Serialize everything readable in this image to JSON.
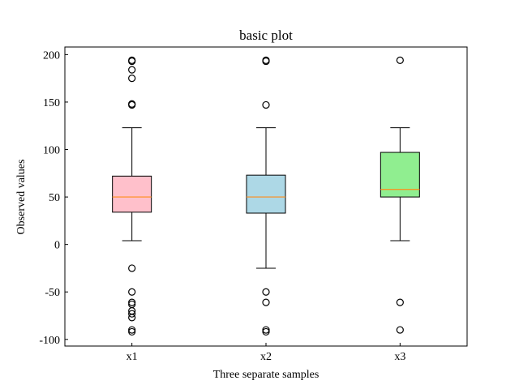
{
  "chart_data": {
    "type": "boxplot",
    "title": "basic plot",
    "xlabel": "Three separate samples",
    "ylabel": "Observed values",
    "ylim": [
      -107,
      208
    ],
    "yticks": [
      -100,
      -50,
      0,
      50,
      100,
      150,
      200
    ],
    "categories": [
      "x1",
      "x2",
      "x3"
    ],
    "series": [
      {
        "label": "x1",
        "color": "#ffc0cb",
        "whisker_low": 4,
        "q1": 34,
        "median": 50,
        "q3": 72,
        "whisker_high": 123,
        "outliers": [
          193,
          194,
          184,
          175,
          148,
          147,
          -25,
          -50,
          -61,
          -63,
          -70,
          -73,
          -77,
          -90,
          -92
        ]
      },
      {
        "label": "x2",
        "color": "#add8e6",
        "whisker_low": -25,
        "q1": 33,
        "median": 50,
        "q3": 73,
        "whisker_high": 123,
        "outliers": [
          193,
          194,
          147,
          -50,
          -61,
          -90,
          -92
        ]
      },
      {
        "label": "x3",
        "color": "#90ee90",
        "whisker_low": 4,
        "q1": 50,
        "median": 58,
        "q3": 97,
        "whisker_high": 123,
        "outliers": [
          194,
          -61,
          -90
        ]
      }
    ],
    "median_color": "#ff8c1a",
    "grid": false
  }
}
